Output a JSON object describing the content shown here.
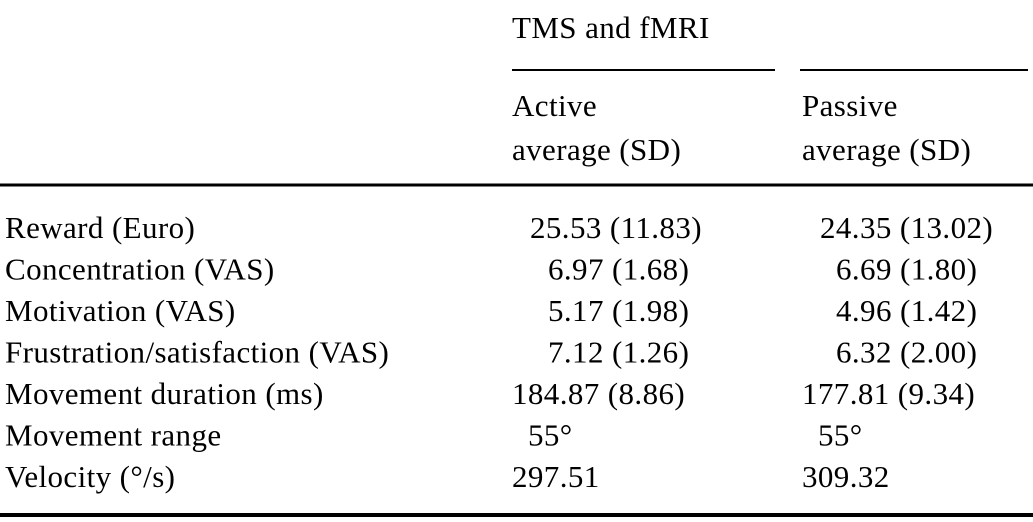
{
  "table": {
    "group_header": "TMS and fMRI",
    "column_headers": [
      [
        "Active",
        "average (SD)"
      ],
      [
        "Passive",
        "average (SD)"
      ]
    ],
    "rows": [
      [
        "Reward (Euro)",
        "25.53 (11.83)",
        "24.35 (13.02)"
      ],
      [
        "Concentration (VAS)",
        "6.97 (1.68)",
        "6.69 (1.80)"
      ],
      [
        "Motivation (VAS)",
        "5.17 (1.98)",
        "4.96 (1.42)"
      ],
      [
        "Frustration/satisfaction (VAS)",
        "7.12 (1.26)",
        "6.32 (2.00)"
      ],
      [
        "Movement duration (ms)",
        "184.87 (8.86)",
        "177.81 (9.34)"
      ],
      [
        "Movement range",
        "55°",
        "55°"
      ],
      [
        "Velocity (°/s)",
        "297.51",
        "309.32"
      ]
    ]
  }
}
